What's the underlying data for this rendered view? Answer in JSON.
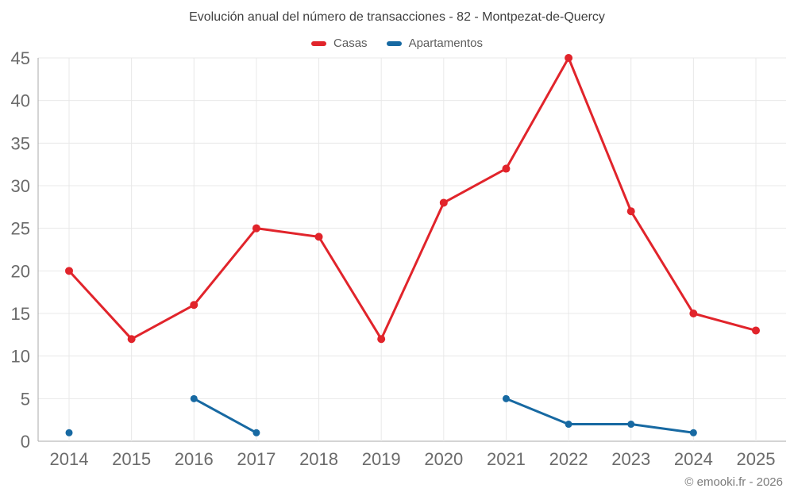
{
  "chart_data": {
    "type": "line",
    "title": "Evolución anual del número de transacciones - 82 - Montpezat-de-Quercy",
    "categories": [
      "2014",
      "2015",
      "2016",
      "2017",
      "2018",
      "2019",
      "2020",
      "2021",
      "2022",
      "2023",
      "2024",
      "2025"
    ],
    "series": [
      {
        "name": "Casas",
        "color": "#e1242b",
        "values": [
          20,
          12,
          16,
          25,
          24,
          12,
          28,
          32,
          45,
          27,
          15,
          13
        ]
      },
      {
        "name": "Apartamentos",
        "color": "#1769a2",
        "values": [
          1,
          null,
          5,
          1,
          null,
          null,
          null,
          5,
          2,
          2,
          1,
          null
        ]
      }
    ],
    "ylim": [
      0,
      45
    ],
    "ytick_step": 5,
    "yticks": [
      0,
      5,
      10,
      15,
      20,
      25,
      30,
      35,
      40,
      45
    ],
    "grid": true,
    "legend_position": "top",
    "xlabel": "",
    "ylabel": ""
  },
  "footer": {
    "text": "© emooki.fr - 2026"
  },
  "theme": {
    "background": "#ffffff",
    "grid_color": "#e8e8e8",
    "axis_color": "#a9a9a9",
    "title_color": "#3f3f3f",
    "tick_label_color": "#6b6b6b",
    "legend_text_color": "#5c5c5c",
    "footer_color": "#7b7b7b"
  }
}
